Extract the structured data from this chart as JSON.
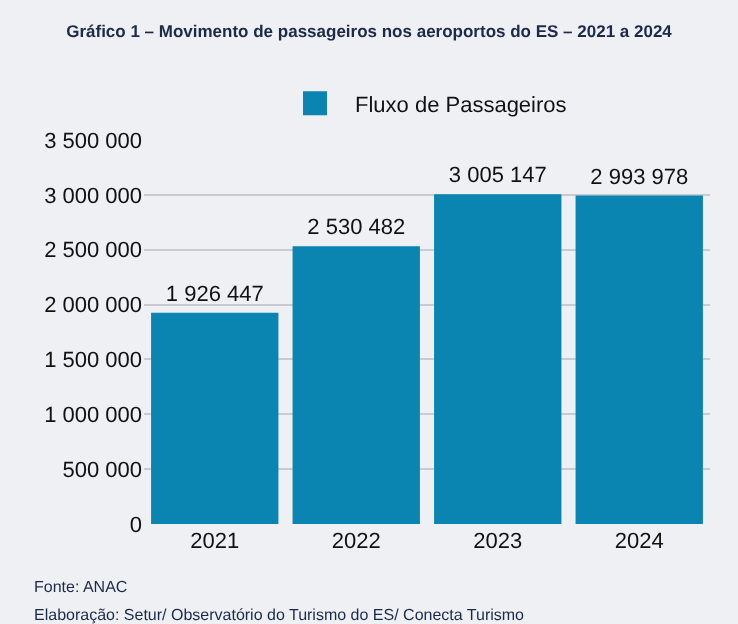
{
  "chart_data": {
    "type": "bar",
    "title": "Gráfico 1 – Movimento de passageiros nos aeroportos do ES – 2021 a 2024",
    "categories": [
      "2021",
      "2022",
      "2023",
      "2024"
    ],
    "series": [
      {
        "name": "Fluxo de Passageiros",
        "color": "#0a84b0",
        "values": [
          1926447,
          2530482,
          3005147,
          2993978
        ]
      }
    ],
    "value_labels": [
      "1 926 447",
      "2 530 482",
      "3 005 147",
      "2 993 978"
    ],
    "ylim": [
      0,
      3500000
    ],
    "yticks": [
      {
        "value": 0,
        "label": "0"
      },
      {
        "value": 500000,
        "label": "500 000"
      },
      {
        "value": 1000000,
        "label": "1 000 000"
      },
      {
        "value": 1500000,
        "label": "1 500 000"
      },
      {
        "value": 2000000,
        "label": "2 000 000"
      },
      {
        "value": 2500000,
        "label": "2 500 000"
      },
      {
        "value": 3000000,
        "label": "3 000 000"
      },
      {
        "value": 3500000,
        "label": "3 500 000"
      }
    ],
    "grid": "y",
    "legend": "top",
    "annotations": [
      "Fonte: ANAC",
      "Elaboração: Setur/ Observatório do Turismo do ES/ Conecta Turismo"
    ]
  }
}
